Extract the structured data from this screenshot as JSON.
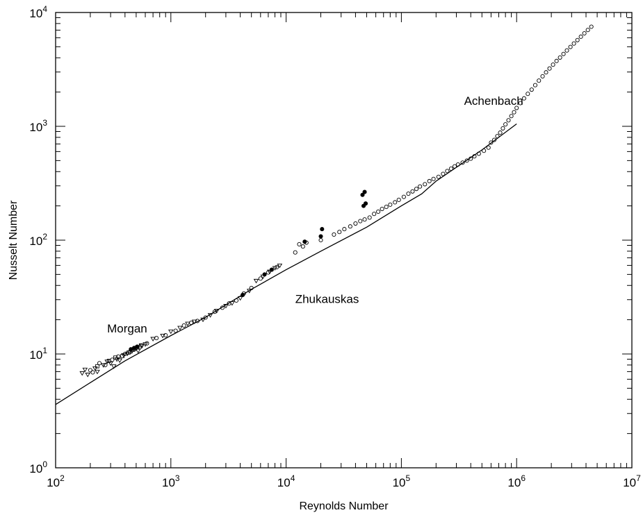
{
  "chart_data": {
    "type": "scatter",
    "title": "",
    "xlabel": "Reynolds Number",
    "ylabel": "Nusselt Number",
    "x_scale": "log",
    "y_scale": "log",
    "xlim": [
      100,
      10000000
    ],
    "ylim": [
      1,
      10000
    ],
    "grid": false,
    "x_ticks": [
      {
        "base": "10",
        "exp": "2",
        "value": 100
      },
      {
        "base": "10",
        "exp": "3",
        "value": 1000
      },
      {
        "base": "10",
        "exp": "4",
        "value": 10000
      },
      {
        "base": "10",
        "exp": "5",
        "value": 100000
      },
      {
        "base": "10",
        "exp": "6",
        "value": 1000000
      },
      {
        "base": "10",
        "exp": "7",
        "value": 10000000
      }
    ],
    "y_ticks": [
      {
        "base": "10",
        "exp": "0",
        "value": 1
      },
      {
        "base": "10",
        "exp": "1",
        "value": 10
      },
      {
        "base": "10",
        "exp": "2",
        "value": 100
      },
      {
        "base": "10",
        "exp": "3",
        "value": 1000
      },
      {
        "base": "10",
        "exp": "4",
        "value": 10000
      }
    ],
    "annotations": [
      {
        "text": "Morgan",
        "x": 280,
        "y": 15.5
      },
      {
        "text": "Zhukauskas",
        "x": 12000,
        "y": 28
      },
      {
        "text": "Achenbach",
        "x": 350000,
        "y": 1550
      }
    ],
    "line": {
      "x": [
        100,
        200,
        400,
        1000,
        2000,
        5000,
        10000,
        20000,
        50000,
        100000,
        150000,
        200000,
        500000,
        1000000
      ],
      "y": [
        3.6,
        5.6,
        8.7,
        14.5,
        21,
        37,
        55,
        80,
        130,
        200,
        255,
        330,
        620,
        1050
      ]
    },
    "series": [
      {
        "marker": "triangle",
        "points": [
          [
            170,
            6.8
          ],
          [
            180,
            7.3
          ],
          [
            190,
            6.6
          ],
          [
            220,
            7.5
          ],
          [
            230,
            7.0
          ],
          [
            260,
            8.0
          ],
          [
            280,
            8.6
          ],
          [
            300,
            8.3
          ],
          [
            320,
            7.8
          ],
          [
            340,
            9.0
          ],
          [
            360,
            8.8
          ],
          [
            390,
            9.8
          ],
          [
            420,
            10.1
          ],
          [
            460,
            10.6
          ],
          [
            500,
            11.2
          ],
          [
            520,
            10.7
          ],
          [
            560,
            11.8
          ],
          [
            600,
            12.2
          ],
          [
            700,
            13.6
          ],
          [
            850,
            14.5
          ],
          [
            1000,
            15.8
          ],
          [
            1200,
            17.0
          ],
          [
            1400,
            18.5
          ],
          [
            1600,
            19.3
          ],
          [
            1900,
            20.1
          ],
          [
            2200,
            22.0
          ],
          [
            2500,
            24.0
          ],
          [
            3000,
            26.5
          ],
          [
            3400,
            28.0
          ],
          [
            4000,
            31.0
          ],
          [
            4800,
            36.0
          ],
          [
            5500,
            44.0
          ],
          [
            6300,
            48.0
          ],
          [
            7200,
            53.0
          ],
          [
            8000,
            57.0
          ],
          [
            8800,
            60.0
          ]
        ]
      },
      {
        "marker": "circle",
        "points": [
          [
            200,
            7.2
          ],
          [
            210,
            6.9
          ],
          [
            240,
            8.3
          ],
          [
            270,
            8.0
          ],
          [
            310,
            8.9
          ],
          [
            350,
            9.5
          ],
          [
            400,
            10.0
          ],
          [
            440,
            10.4
          ],
          [
            480,
            11.0
          ],
          [
            540,
            11.5
          ],
          [
            620,
            12.4
          ],
          [
            750,
            13.8
          ],
          [
            900,
            14.6
          ],
          [
            1100,
            16.0
          ],
          [
            1300,
            17.8
          ],
          [
            1500,
            18.8
          ],
          [
            1700,
            19.5
          ],
          [
            2000,
            20.9
          ],
          [
            2400,
            23.5
          ],
          [
            2800,
            25.5
          ],
          [
            3200,
            27.8
          ],
          [
            3700,
            29.5
          ],
          [
            4300,
            34.0
          ],
          [
            5000,
            38.0
          ],
          [
            6000,
            46.0
          ],
          [
            7000,
            52.0
          ],
          [
            8300,
            58.0
          ],
          [
            12000,
            78.0
          ],
          [
            13000,
            92.0
          ],
          [
            14000,
            88.0
          ],
          [
            15000,
            95.0
          ],
          [
            20000,
            100.0
          ],
          [
            26000,
            112.0
          ],
          [
            29000,
            118.0
          ],
          [
            32000,
            125.0
          ],
          [
            36000,
            132.0
          ],
          [
            40000,
            140.0
          ],
          [
            44000,
            147.0
          ],
          [
            48000,
            152.0
          ],
          [
            53000,
            158.0
          ],
          [
            58000,
            170.0
          ],
          [
            63000,
            178.0
          ],
          [
            68000,
            188.0
          ],
          [
            74000,
            196.0
          ],
          [
            80000,
            205.0
          ],
          [
            88000,
            215.0
          ],
          [
            95000,
            226.0
          ],
          [
            105000,
            240.0
          ],
          [
            115000,
            256.0
          ],
          [
            125000,
            268.0
          ],
          [
            135000,
            282.0
          ],
          [
            145000,
            296.0
          ],
          [
            160000,
            310.0
          ],
          [
            175000,
            330.0
          ],
          [
            190000,
            345.0
          ],
          [
            210000,
            360.0
          ],
          [
            230000,
            382.0
          ],
          [
            250000,
            405.0
          ],
          [
            270000,
            425.0
          ],
          [
            290000,
            445.0
          ],
          [
            310000,
            462.0
          ],
          [
            340000,
            480.0
          ],
          [
            370000,
            500.0
          ],
          [
            400000,
            520.0
          ],
          [
            430000,
            545.0
          ],
          [
            470000,
            575.0
          ],
          [
            520000,
            610.0
          ],
          [
            570000,
            650.0
          ],
          [
            600000,
            720.0
          ],
          [
            640000,
            760.0
          ],
          [
            680000,
            820.0
          ],
          [
            720000,
            880.0
          ],
          [
            760000,
            960.0
          ],
          [
            800000,
            1040.0
          ],
          [
            850000,
            1130.0
          ],
          [
            900000,
            1230.0
          ],
          [
            950000,
            1330.0
          ],
          [
            1000000,
            1450.0
          ],
          [
            1080000,
            1600.0
          ],
          [
            1160000,
            1760.0
          ],
          [
            1250000,
            1930.0
          ],
          [
            1350000,
            2100.0
          ],
          [
            1450000,
            2300.0
          ],
          [
            1560000,
            2520.0
          ],
          [
            1680000,
            2750.0
          ],
          [
            1800000,
            2980.0
          ],
          [
            1930000,
            3220.0
          ],
          [
            2070000,
            3480.0
          ],
          [
            2220000,
            3750.0
          ],
          [
            2380000,
            4020.0
          ],
          [
            2550000,
            4320.0
          ],
          [
            2730000,
            4640.0
          ],
          [
            2930000,
            4980.0
          ],
          [
            3140000,
            5340.0
          ],
          [
            3370000,
            5720.0
          ],
          [
            3610000,
            6130.0
          ],
          [
            3870000,
            6560.0
          ],
          [
            4150000,
            7020.0
          ],
          [
            4450000,
            7500.0
          ]
        ]
      },
      {
        "marker": "square",
        "points": [
          [
            230,
            7.8
          ],
          [
            290,
            8.7
          ],
          [
            330,
            9.3
          ],
          [
            380,
            9.6
          ],
          [
            430,
            10.3
          ],
          [
            470,
            10.9
          ],
          [
            510,
            11.4
          ],
          [
            550,
            11.9
          ]
        ]
      },
      {
        "marker": "filled",
        "points": [
          [
            450,
            11.0
          ],
          [
            480,
            11.3
          ],
          [
            510,
            11.6
          ],
          [
            4200,
            33.0
          ],
          [
            6500,
            50.0
          ],
          [
            7500,
            55.0
          ],
          [
            14500,
            97.0
          ],
          [
            20500,
            125.0
          ],
          [
            20000,
            108.0
          ],
          [
            46000,
            250.0
          ],
          [
            48000,
            265.0
          ],
          [
            47000,
            200.0
          ],
          [
            49000,
            210.0
          ]
        ]
      }
    ]
  }
}
